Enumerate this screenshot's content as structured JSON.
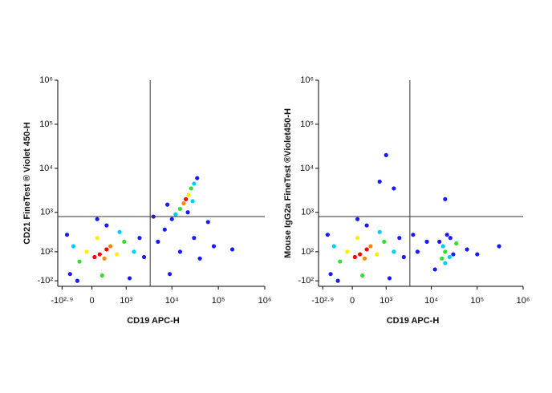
{
  "chart_data": [
    {
      "type": "scatter",
      "x_label": "CD19 APC-H",
      "y_label": "CD21 FineTest ® Violet 450-H",
      "xscale": "biexponential",
      "yscale": "biexponential",
      "xlim": [
        -1000,
        1000000
      ],
      "ylim": [
        -150,
        1000000
      ],
      "xticks": [
        {
          "value": -794,
          "label": "-10²·⁹"
        },
        0,
        {
          "value": 1000,
          "label": "10³"
        },
        {
          "value": 10000,
          "label": "10⁴"
        },
        {
          "value": 100000,
          "label": "10⁵"
        },
        {
          "value": 1000000,
          "label": "10⁶"
        }
      ],
      "yticks": [
        {
          "value": -100,
          "label": "-10²"
        },
        {
          "value": 100,
          "label": "10²"
        },
        {
          "value": 1000,
          "label": "10³"
        },
        {
          "value": 10000,
          "label": "10⁴"
        },
        {
          "value": 100000,
          "label": "10⁵"
        },
        {
          "value": 1000000,
          "label": "10⁶"
        }
      ],
      "gate": {
        "x": 3400,
        "y": 800
      },
      "x": [
        150,
        300,
        50,
        250,
        400,
        -100,
        600,
        100,
        -250,
        900,
        200,
        700,
        -400,
        1500,
        -500,
        2000,
        300,
        1200,
        -600,
        2500,
        100,
        -300,
        20000,
        18000,
        23000,
        15000,
        26000,
        12000,
        30000,
        10000,
        35000,
        22000,
        8000,
        28000,
        5000,
        15000,
        40000,
        80000,
        9000,
        30000,
        200000,
        60000,
        7000,
        4000
      ],
      "y": [
        80,
        120,
        60,
        50,
        150,
        100,
        80,
        250,
        30,
        200,
        -60,
        350,
        150,
        100,
        -50,
        250,
        500,
        -80,
        300,
        60,
        700,
        -100,
        2000,
        1600,
        2500,
        1200,
        3500,
        900,
        4500,
        700,
        6000,
        1000,
        1500,
        1800,
        200,
        100,
        50,
        150,
        -50,
        250,
        120,
        600,
        400,
        800
      ],
      "colors": [
        "#ff0000",
        "#ff0000",
        "#ff0000",
        "#ff8800",
        "#ff8800",
        "#ffee00",
        "#ffee00",
        "#ffee00",
        "#33dd33",
        "#33dd33",
        "#33dd33",
        "#00ccff",
        "#00ccff",
        "#00ccff",
        "#1a1aff",
        "#1a1aff",
        "#1a1aff",
        "#1a1aff",
        "#1a1aff",
        "#1a1aff",
        "#1a1aff",
        "#1a1aff",
        "#ff0000",
        "#ff8800",
        "#ffee00",
        "#33dd33",
        "#33dd33",
        "#00ccff",
        "#00ccff",
        "#1a1aff",
        "#1a1aff",
        "#1a1aff",
        "#1a1aff",
        "#00ccff",
        "#1a1aff",
        "#1a1aff",
        "#1a1aff",
        "#1a1aff",
        "#1a1aff",
        "#1a1aff",
        "#1a1aff",
        "#1a1aff",
        "#1a1aff",
        "#1a1aff"
      ]
    },
    {
      "type": "scatter",
      "x_label": "CD19 APC-H",
      "y_label": "Mouse IgG2a FineTest ®Violet450-H",
      "xscale": "biexponential",
      "yscale": "biexponential",
      "xlim": [
        -1000,
        1000000
      ],
      "ylim": [
        -150,
        1000000
      ],
      "xticks": [
        {
          "value": -794,
          "label": "-10²·⁹"
        },
        0,
        {
          "value": 1000,
          "label": "10³"
        },
        {
          "value": 10000,
          "label": "10⁴"
        },
        {
          "value": 100000,
          "label": "10⁵"
        },
        {
          "value": 1000000,
          "label": "10⁶"
        }
      ],
      "yticks": [
        {
          "value": -100,
          "label": "-10²"
        },
        {
          "value": 100,
          "label": "10²"
        },
        {
          "value": 1000,
          "label": "10³"
        },
        {
          "value": 10000,
          "label": "10⁴"
        },
        {
          "value": 100000,
          "label": "10⁵"
        },
        {
          "value": 1000000,
          "label": "10⁶"
        }
      ],
      "gate": {
        "x": 3400,
        "y": 800
      },
      "x": [
        150,
        300,
        50,
        250,
        400,
        -100,
        600,
        100,
        -250,
        900,
        200,
        700,
        -400,
        1500,
        -500,
        2000,
        300,
        1200,
        -600,
        2500,
        100,
        -300,
        20000,
        18000,
        25000,
        15000,
        30000,
        22000,
        12000,
        35000,
        20000,
        26000,
        17000,
        5000,
        8000,
        60000,
        100000,
        300000,
        4000,
        20000,
        700,
        1500,
        1000
      ],
      "y": [
        80,
        120,
        60,
        50,
        150,
        100,
        80,
        250,
        30,
        200,
        -60,
        350,
        150,
        100,
        -50,
        250,
        500,
        -80,
        300,
        60,
        700,
        -100,
        100,
        150,
        60,
        200,
        80,
        300,
        -20,
        180,
        20,
        250,
        50,
        100,
        200,
        120,
        80,
        150,
        300,
        2000,
        5000,
        3500,
        20000
      ],
      "colors": [
        "#ff0000",
        "#ff0000",
        "#ff0000",
        "#ff8800",
        "#ff8800",
        "#ffee00",
        "#ffee00",
        "#ffee00",
        "#33dd33",
        "#33dd33",
        "#33dd33",
        "#00ccff",
        "#00ccff",
        "#00ccff",
        "#1a1aff",
        "#1a1aff",
        "#1a1aff",
        "#1a1aff",
        "#1a1aff",
        "#1a1aff",
        "#1a1aff",
        "#1a1aff",
        "#33dd33",
        "#00ccff",
        "#00ccff",
        "#1a1aff",
        "#1a1aff",
        "#1a1aff",
        "#1a1aff",
        "#33dd33",
        "#00ccff",
        "#1a1aff",
        "#33dd33",
        "#1a1aff",
        "#1a1aff",
        "#1a1aff",
        "#1a1aff",
        "#1a1aff",
        "#1a1aff",
        "#1a1aff",
        "#1a1aff",
        "#1a1aff",
        "#1a1aff"
      ]
    }
  ]
}
